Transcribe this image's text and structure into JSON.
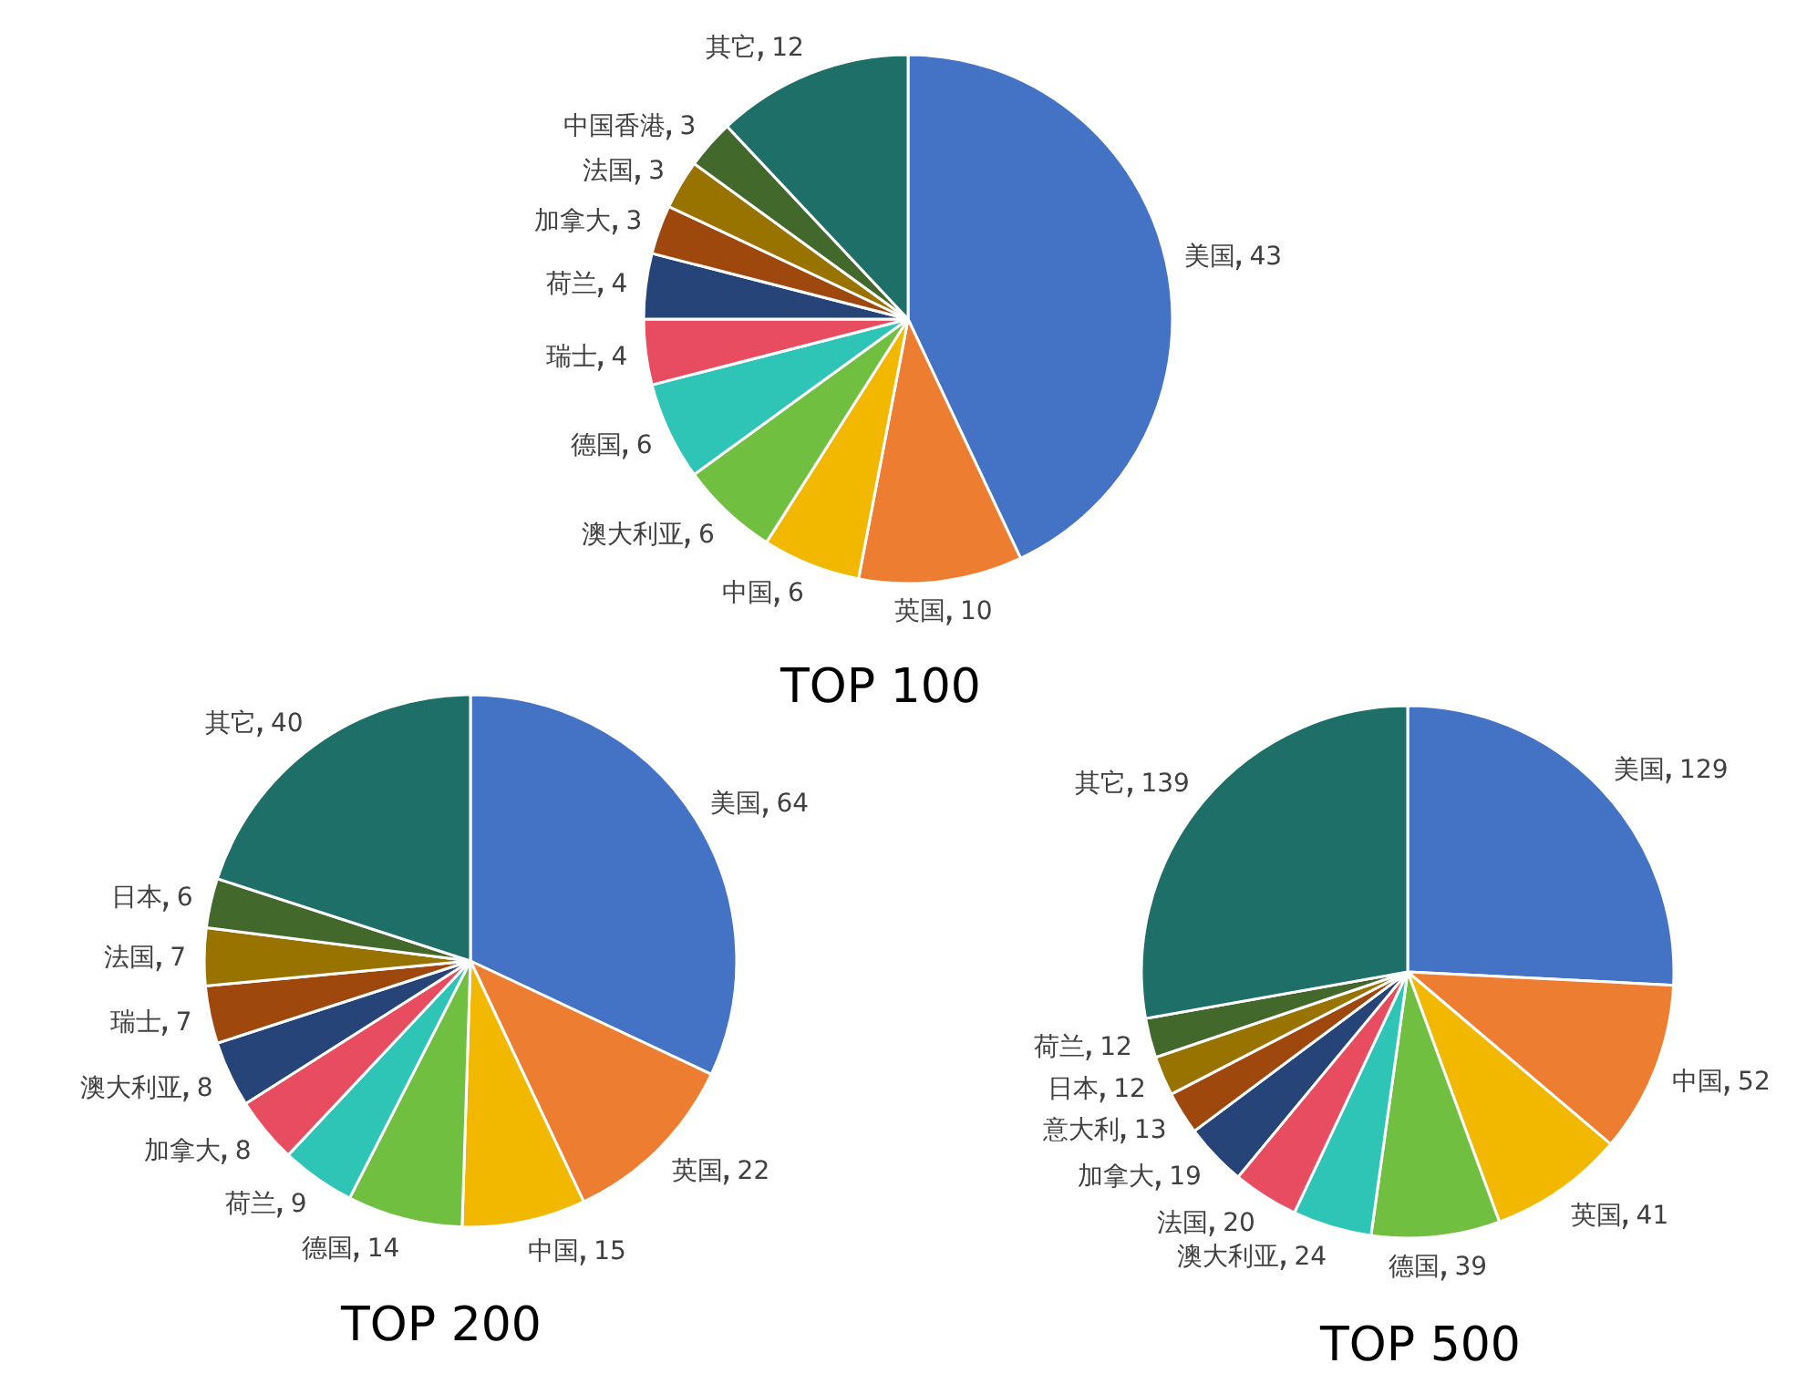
{
  "chart_data": [
    {
      "type": "pie",
      "title": "TOP 100",
      "categories": [
        "美国",
        "英国",
        "中国",
        "澳大利亚",
        "德国",
        "瑞士",
        "荷兰",
        "加拿大",
        "法国",
        "中国香港",
        "其它"
      ],
      "values": [
        43,
        10,
        6,
        6,
        6,
        4,
        4,
        3,
        3,
        3,
        12
      ],
      "colors": [
        "#4472c4",
        "#ed7d31",
        "#f2b800",
        "#70bf41",
        "#2ec4b6",
        "#e84c61",
        "#264478",
        "#9e480e",
        "#997300",
        "#43682b",
        "#1e6f67"
      ],
      "data_labels": true
    },
    {
      "type": "pie",
      "title": "TOP 200",
      "categories": [
        "美国",
        "英国",
        "中国",
        "德国",
        "荷兰",
        "加拿大",
        "澳大利亚",
        "瑞士",
        "法国",
        "日本",
        "其它"
      ],
      "values": [
        64,
        22,
        15,
        14,
        9,
        8,
        8,
        7,
        7,
        6,
        40
      ],
      "colors": [
        "#4472c4",
        "#ed7d31",
        "#f2b800",
        "#70bf41",
        "#2ec4b6",
        "#e84c61",
        "#264478",
        "#9e480e",
        "#997300",
        "#43682b",
        "#1e6f67"
      ],
      "data_labels": true
    },
    {
      "type": "pie",
      "title": "TOP 500",
      "categories": [
        "美国",
        "中国",
        "英国",
        "德国",
        "澳大利亚",
        "法国",
        "加拿大",
        "意大利",
        "日本",
        "荷兰",
        "其它"
      ],
      "values": [
        129,
        52,
        41,
        39,
        24,
        20,
        19,
        13,
        12,
        12,
        139
      ],
      "colors": [
        "#4472c4",
        "#ed7d31",
        "#f2b800",
        "#70bf41",
        "#2ec4b6",
        "#e84c61",
        "#264478",
        "#9e480e",
        "#997300",
        "#43682b",
        "#1e6f67"
      ],
      "data_labels": true
    }
  ]
}
